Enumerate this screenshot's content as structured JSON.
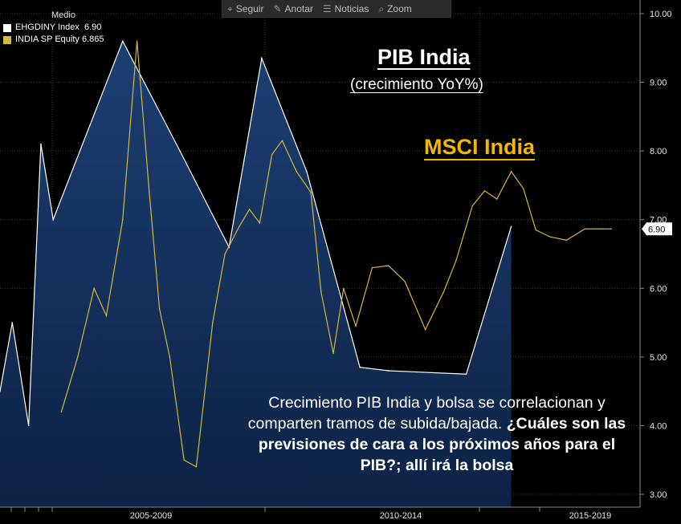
{
  "toolbar": {
    "items": [
      {
        "label": "Seguir",
        "icon": "crosshair-icon"
      },
      {
        "label": "Anotar",
        "icon": "pencil-icon"
      },
      {
        "label": "Noticias",
        "icon": "news-icon"
      },
      {
        "label": "Zoom",
        "icon": "zoom-icon"
      }
    ]
  },
  "legend": {
    "title": "Medio",
    "entries": [
      {
        "text": "EHGDINY Index  6.90",
        "color": "#ffffff"
      },
      {
        "text": "INDIA SP Equity 6.865",
        "color": "#d4b93a"
      }
    ]
  },
  "annotations": {
    "title": "PIB India",
    "subtitle": "(crecimiento YoY%)",
    "msci": "MSCI India",
    "body_plain": "Crecimiento PIB India y bolsa se correlacionan y comparten tramos de subida/bajada.",
    "body_bold": "¿Cuáles son las previsiones de cara a los próximos años para el PIB?; allí irá la bolsa"
  },
  "colors": {
    "background": "#000000",
    "gdp_line": "#ffffff",
    "gdp_fill_top": "#1a3b6e",
    "gdp_fill_bottom": "#0e2346",
    "equity_line": "#d4b93a",
    "msci_label": "#f2b705",
    "grid": "#3c3c3c"
  },
  "chart_data": {
    "type": "area",
    "x_period_labels": [
      "2005-2009",
      "2010-2014",
      "2015-2019"
    ],
    "ylim": [
      3.0,
      10.0
    ],
    "y_ticks": [
      "3.00",
      "4.00",
      "5.00",
      "6.00",
      "7.00",
      "8.00",
      "9.00",
      "10.00"
    ],
    "last_value_label": "6.90",
    "series": [
      {
        "name": "EHGDINY Index",
        "type": "area",
        "x": [
          2003.0,
          2003.3,
          2003.7,
          2004.0,
          2004.3,
          2006.0,
          2007.4,
          2008.6,
          2009.4,
          2010.5,
          2011.8,
          2012.5,
          2014.4,
          2015.5
        ],
        "y": [
          4.5,
          5.5,
          4.0,
          8.1,
          7.0,
          9.6,
          8.0,
          6.6,
          9.35,
          7.7,
          4.85,
          4.8,
          4.75,
          6.9
        ]
      },
      {
        "name": "INDIA SP Equity",
        "type": "line",
        "x": [
          2004.5,
          2004.9,
          2005.3,
          2005.6,
          2006.0,
          2006.35,
          2006.65,
          2006.9,
          2007.15,
          2007.5,
          2007.8,
          2008.2,
          2008.5,
          2008.85,
          2009.1,
          2009.35,
          2009.65,
          2009.9,
          2010.25,
          2010.6,
          2010.85,
          2011.15,
          2011.4,
          2011.7,
          2012.1,
          2012.5,
          2012.9,
          2013.4,
          2013.85,
          2014.15,
          2014.55,
          2014.85,
          2015.15,
          2015.5,
          2015.8,
          2016.1,
          2016.45,
          2016.85,
          2017.3,
          2017.65,
          2017.95
        ],
        "y": [
          4.2,
          5.0,
          6.0,
          5.6,
          7.0,
          9.6,
          7.4,
          5.7,
          5.0,
          3.5,
          3.4,
          5.5,
          6.5,
          6.9,
          7.15,
          6.95,
          7.95,
          8.15,
          7.7,
          7.4,
          5.95,
          5.05,
          6.0,
          5.45,
          6.3,
          6.33,
          6.1,
          5.4,
          5.95,
          6.4,
          7.2,
          7.42,
          7.3,
          7.7,
          7.45,
          6.85,
          6.75,
          6.7,
          6.865,
          6.865,
          6.865
        ]
      }
    ]
  }
}
